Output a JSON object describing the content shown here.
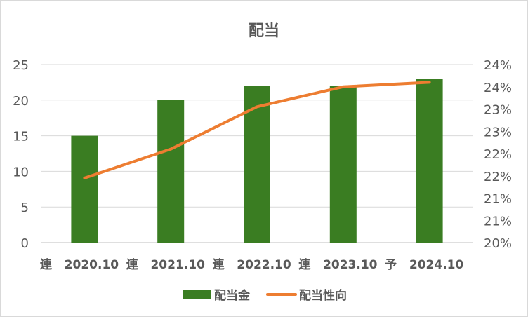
{
  "chart_data": {
    "type": "bar+line",
    "title": "配当",
    "categories": [
      {
        "prefix": "連",
        "label": "2020.10"
      },
      {
        "prefix": "連",
        "label": "2021.10"
      },
      {
        "prefix": "連",
        "label": "2022.10"
      },
      {
        "prefix": "連",
        "label": "2023.10"
      },
      {
        "prefix": "予",
        "label": "2024.10"
      }
    ],
    "series": [
      {
        "name": "配当金",
        "type": "bar",
        "axis": "left",
        "color": "#3a7d22",
        "values": [
          15,
          20,
          22,
          22,
          23
        ]
      },
      {
        "name": "配当性向",
        "type": "line",
        "axis": "right",
        "color": "#ed7d31",
        "values": [
          21.45,
          22.1,
          23.05,
          23.5,
          23.6
        ]
      }
    ],
    "left_axis": {
      "min": 0,
      "max": 25,
      "ticks": [
        "0",
        "5",
        "10",
        "15",
        "20",
        "25"
      ]
    },
    "right_axis": {
      "min": 20,
      "max": 24,
      "ticks": [
        "20%",
        "21%",
        "21%",
        "22%",
        "22%",
        "23%",
        "23%",
        "24%",
        "24%"
      ]
    },
    "legend": "bottom",
    "grid": true
  }
}
